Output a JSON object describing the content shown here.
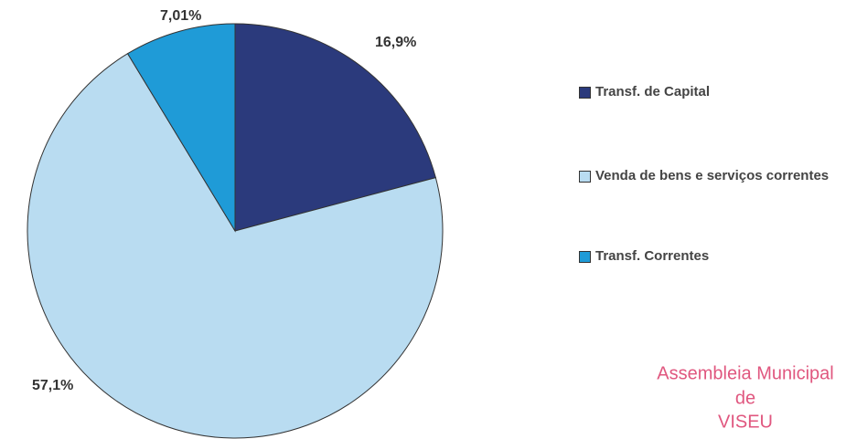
{
  "chart_data": {
    "type": "pie",
    "categories": [
      "Transf. de Capital",
      "Venda de bens e serviços correntes",
      "Transf. Correntes"
    ],
    "values": [
      16.9,
      57.1,
      7.01
    ],
    "value_labels": [
      "16,9%",
      "57,1%",
      "7,01%"
    ],
    "colors": [
      "#2b3a7c",
      "#b9dcf1",
      "#1f9bd7"
    ],
    "legend": "right",
    "annotations": [
      "Assembleia Municipal",
      "de",
      "VISEU"
    ]
  }
}
